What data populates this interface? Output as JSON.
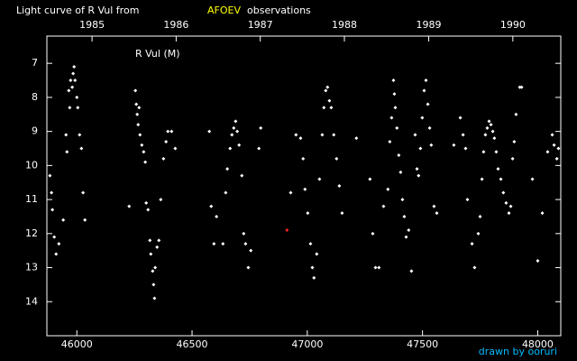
{
  "chart_data": {
    "type": "scatter",
    "title": "Light curve of R Vul from",
    "title_highlight": "AFOEV",
    "title_suffix": "observations",
    "annotation": "R Vul (M)",
    "credit": "drawn by ooruri",
    "xlim": [
      45870,
      48100
    ],
    "ylim": [
      15.0,
      6.2
    ],
    "xticks": [
      46000,
      46500,
      47000,
      47500,
      48000
    ],
    "yticks": [
      7,
      8,
      9,
      10,
      11,
      12,
      13,
      14
    ],
    "x2ticks": [
      {
        "value": 46066,
        "label": "1985"
      },
      {
        "value": 46431,
        "label": "1986"
      },
      {
        "value": 46796,
        "label": "1987"
      },
      {
        "value": 47161,
        "label": "1988"
      },
      {
        "value": 47527,
        "label": "1989"
      },
      {
        "value": 47892,
        "label": "1990"
      }
    ],
    "series": [
      {
        "color": "#ffffff",
        "x": [
          45883,
          45890,
          45894,
          45902,
          45910,
          45922,
          45941,
          45953,
          45957,
          45965,
          45969,
          45973,
          45980,
          45984,
          45988,
          45992,
          46000,
          46004,
          46012,
          46020,
          46027,
          46035,
          46227,
          46254,
          46258,
          46262,
          46266,
          46270,
          46274,
          46282,
          46290,
          46297,
          46301,
          46309,
          46317,
          46321,
          46329,
          46333,
          46337,
          46340,
          46348,
          46356,
          46364,
          46376,
          46387,
          46395,
          46411,
          46427,
          46575,
          46583,
          46595,
          46606,
          46634,
          46646,
          46653,
          46665,
          46673,
          46681,
          46689,
          46696,
          46704,
          46716,
          46724,
          46732,
          46744,
          46755,
          46790,
          46798,
          46928,
          46951,
          46971,
          46982,
          46990,
          47002,
          47014,
          47022,
          47029,
          47041,
          47053,
          47065,
          47072,
          47080,
          47088,
          47096,
          47104,
          47115,
          47127,
          47139,
          47151,
          47213,
          47272,
          47284,
          47296,
          47311,
          47331,
          47350,
          47358,
          47366,
          47374,
          47378,
          47382,
          47389,
          47397,
          47405,
          47413,
          47421,
          47429,
          47440,
          47452,
          47468,
          47476,
          47483,
          47491,
          47499,
          47507,
          47515,
          47523,
          47531,
          47538,
          47550,
          47562,
          47636,
          47664,
          47676,
          47687,
          47695,
          47715,
          47726,
          47742,
          47750,
          47758,
          47765,
          47773,
          47781,
          47789,
          47797,
          47805,
          47812,
          47820,
          47828,
          47840,
          47851,
          47863,
          47875,
          47883,
          47891,
          47898,
          47906,
          47922,
          47930,
          47977,
          48000,
          48020,
          48043,
          48063,
          48071,
          48083,
          48090
        ],
        "values": [
          10.3,
          10.8,
          11.3,
          12.1,
          12.6,
          12.3,
          11.6,
          9.1,
          9.6,
          7.8,
          8.3,
          7.5,
          7.7,
          7.3,
          7.1,
          7.5,
          8.0,
          8.3,
          9.1,
          9.5,
          10.8,
          11.6,
          11.2,
          7.8,
          8.2,
          8.5,
          8.8,
          8.3,
          9.1,
          9.4,
          9.6,
          9.9,
          11.1,
          11.3,
          12.2,
          12.6,
          13.1,
          13.5,
          13.9,
          13.0,
          12.4,
          12.2,
          11.0,
          9.8,
          9.3,
          9.0,
          9.0,
          9.5,
          9.0,
          11.2,
          12.3,
          11.5,
          12.3,
          10.8,
          10.1,
          9.5,
          9.1,
          8.9,
          8.7,
          9.0,
          9.4,
          10.3,
          12.0,
          12.3,
          13.0,
          12.5,
          9.5,
          8.9,
          10.8,
          9.1,
          9.2,
          9.8,
          10.7,
          11.4,
          12.3,
          13.0,
          13.3,
          12.6,
          10.4,
          9.1,
          8.3,
          7.8,
          7.7,
          8.1,
          8.3,
          9.1,
          9.8,
          10.6,
          11.4,
          9.2,
          10.4,
          12.0,
          13.0,
          13.0,
          11.2,
          10.7,
          9.3,
          8.6,
          7.5,
          7.9,
          8.3,
          8.9,
          9.7,
          10.2,
          11.0,
          11.5,
          12.1,
          11.9,
          13.1,
          9.1,
          10.1,
          10.3,
          9.5,
          8.6,
          7.8,
          7.5,
          8.2,
          8.9,
          9.4,
          11.2,
          11.4,
          9.4,
          8.6,
          9.1,
          9.5,
          11.0,
          12.3,
          13.0,
          12.0,
          11.5,
          10.4,
          9.6,
          9.1,
          8.9,
          8.7,
          8.8,
          9.0,
          9.2,
          9.6,
          10.1,
          10.4,
          10.8,
          11.1,
          11.4,
          11.2,
          9.8,
          9.3,
          8.5,
          7.7,
          7.7,
          10.4,
          12.8,
          11.4,
          9.6,
          9.1,
          9.4,
          9.8,
          9.5
        ]
      },
      {
        "color": "#ff2020",
        "x": [
          46912
        ],
        "values": [
          11.9
        ]
      }
    ]
  }
}
